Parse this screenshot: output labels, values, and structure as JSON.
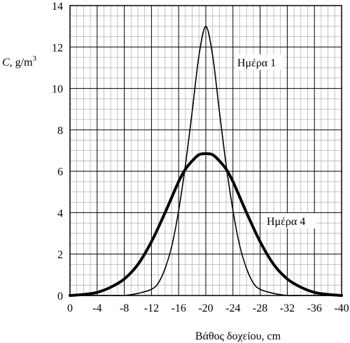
{
  "chart_data": {
    "type": "line",
    "title": "",
    "xlabel": "Βάθος δοχείου, cm",
    "ylabel": {
      "var": "C",
      "unit": ", g/m",
      "sup": "3"
    },
    "xlim": [
      0,
      -40
    ],
    "ylim": [
      0,
      14
    ],
    "x_ticks": [
      0,
      -4,
      -8,
      -12,
      -16,
      -20,
      -24,
      -28,
      -32,
      -36,
      -40
    ],
    "x_tick_labels": [
      "0",
      "-4",
      "-8",
      "-12",
      "-16",
      "-20",
      "-24",
      "-28",
      "-32",
      "-36",
      "-40"
    ],
    "y_ticks": [
      0,
      2,
      4,
      6,
      8,
      10,
      12,
      14
    ],
    "y_tick_labels": [
      "0",
      "2",
      "4",
      "6",
      "8",
      "10",
      "12",
      "14"
    ],
    "grid": true,
    "minor_grid": {
      "x_step": 1,
      "y_step": 0.5
    },
    "series": [
      {
        "name": "Ημέρα 1",
        "style": "thin",
        "x": [
          0,
          -2,
          -4,
          -6,
          -8,
          -10,
          -12,
          -13,
          -14,
          -15,
          -16,
          -17,
          -18,
          -19,
          -20,
          -21,
          -22,
          -23,
          -24,
          -25,
          -26,
          -27,
          -28,
          -30,
          -32,
          -34,
          -36,
          -38,
          -40
        ],
        "y": [
          0,
          0,
          0,
          0,
          0,
          0.1,
          0.3,
          0.6,
          1.3,
          2.4,
          4.1,
          6.3,
          8.9,
          11.6,
          13.0,
          11.6,
          8.9,
          6.3,
          4.1,
          2.4,
          1.3,
          0.6,
          0.3,
          0.1,
          0,
          0,
          0,
          0,
          0
        ]
      },
      {
        "name": "Ημέρα 4",
        "style": "thick",
        "x": [
          0,
          -2,
          -4,
          -6,
          -8,
          -10,
          -12,
          -14,
          -16,
          -17,
          -18,
          -19,
          -20,
          -21,
          -22,
          -23,
          -24,
          -26,
          -28,
          -30,
          -32,
          -34,
          -36,
          -38,
          -40
        ],
        "y": [
          0,
          0.05,
          0.15,
          0.4,
          0.8,
          1.5,
          2.6,
          4.0,
          5.5,
          6.1,
          6.5,
          6.8,
          6.85,
          6.8,
          6.5,
          6.1,
          5.5,
          4.0,
          2.6,
          1.5,
          0.8,
          0.4,
          0.15,
          0.05,
          0
        ]
      }
    ],
    "annotations": [
      {
        "text": "Ημέρα 1",
        "series": "Ημέρα 1"
      },
      {
        "text": "Ημέρα 4",
        "series": "Ημέρα 4"
      }
    ]
  }
}
